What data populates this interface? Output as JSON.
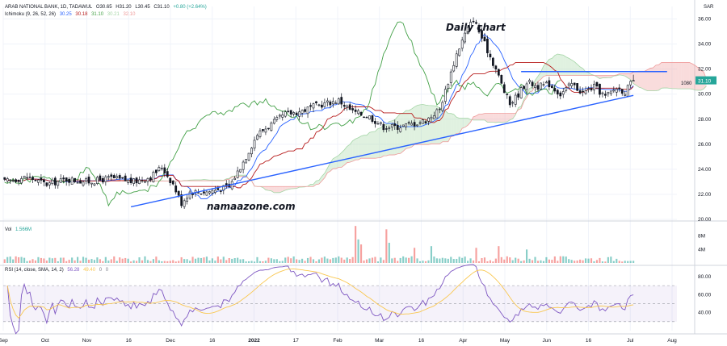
{
  "header": {
    "symbol_line": "ARAB NATIONAL BANK, 1D, TADAWUL",
    "ohlc": [
      "O30.65",
      "H31.20",
      "L30.45",
      "C31.10",
      "+0.80 (+2.64%)"
    ],
    "ichimoku_label": "Ichimoku (9, 26, 52, 26)",
    "ichimoku_values": [
      "30.25",
      "30.18",
      "31.10",
      "30.21",
      "32.10"
    ],
    "ichimoku_colors": [
      "#2962ff",
      "#b71c1c",
      "#43a047",
      "#a5d6a7",
      "#ef9a9a"
    ],
    "vol_label": "Vol",
    "vol_value": "1.566M",
    "rsi_label": "RSI (14, close, SMA, 14, 2)",
    "rsi_values": [
      "56.28",
      "49.40",
      "0",
      "0"
    ],
    "currency": "SAR"
  },
  "annotations": {
    "title": "Daily chart",
    "watermark": "namaazone.com",
    "price_tag": "1080"
  },
  "chart_data": [
    {
      "type": "candlestick",
      "panel": "price",
      "ylim": [
        20.0,
        37.0
      ],
      "y_ticks": [
        "36.00",
        "34.00",
        "32.00",
        "31.10",
        "30.00",
        "28.00",
        "26.00",
        "24.00",
        "22.00",
        "20.00"
      ],
      "x_ticks": [
        "Sep",
        "Oct",
        "Nov",
        "16",
        "Dec",
        "16",
        "2022",
        "17",
        "Feb",
        "Mar",
        "16",
        "Apr",
        "May",
        "Jun",
        "16",
        "Jul",
        "Aug"
      ],
      "last_close": 31.1,
      "trendlines": [
        {
          "name": "support",
          "from": [
            45,
            21.0
          ],
          "to": [
            224,
            29.9
          ]
        },
        {
          "name": "resistance",
          "from": [
            184,
            31.8
          ],
          "to": [
            236,
            31.8
          ]
        }
      ],
      "anchors": [
        [
          0,
          23.0
        ],
        [
          8,
          23.4
        ],
        [
          15,
          22.8
        ],
        [
          22,
          23.2
        ],
        [
          30,
          23.0
        ],
        [
          38,
          23.3
        ],
        [
          46,
          23.0
        ],
        [
          52,
          23.4
        ],
        [
          56,
          24.2
        ],
        [
          60,
          22.8
        ],
        [
          63,
          21.3
        ],
        [
          66,
          22.2
        ],
        [
          72,
          22.2
        ],
        [
          80,
          22.6
        ],
        [
          85,
          24.6
        ],
        [
          90,
          26.8
        ],
        [
          95,
          27.6
        ],
        [
          100,
          28.4
        ],
        [
          105,
          28.6
        ],
        [
          110,
          29.0
        ],
        [
          115,
          29.3
        ],
        [
          119,
          29.5
        ],
        [
          124,
          28.6
        ],
        [
          130,
          28.2
        ],
        [
          135,
          27.4
        ],
        [
          140,
          27.4
        ],
        [
          145,
          27.6
        ],
        [
          150,
          27.9
        ],
        [
          155,
          28.8
        ],
        [
          158,
          31.0
        ],
        [
          161,
          33.2
        ],
        [
          164,
          34.8
        ],
        [
          167,
          36.0
        ],
        [
          171,
          34.0
        ],
        [
          175,
          32.0
        ],
        [
          178,
          30.2
        ],
        [
          180,
          29.2
        ],
        [
          183,
          30.0
        ],
        [
          186,
          31.0
        ],
        [
          190,
          30.6
        ],
        [
          194,
          30.8
        ],
        [
          198,
          30.0
        ],
        [
          202,
          30.8
        ],
        [
          206,
          30.1
        ],
        [
          210,
          30.6
        ],
        [
          214,
          29.8
        ],
        [
          218,
          30.5
        ],
        [
          221,
          30.2
        ],
        [
          224,
          31.1
        ]
      ],
      "ichimoku": {
        "conversion_line": "Tenkan-sen",
        "base_line": "Kijun-sen",
        "lagging_span": "Chikou Span",
        "cloud": [
          "Senkou Span A",
          "Senkou Span B"
        ]
      },
      "legend": "top-left"
    },
    {
      "type": "bar",
      "panel": "volume",
      "ylim": [
        0,
        12
      ],
      "y_ticks": [
        "8M",
        "4M"
      ],
      "unit": "M",
      "spikes": [
        [
          125,
          11.0
        ],
        [
          126,
          7.0
        ],
        [
          127,
          5.5
        ],
        [
          136,
          10.0
        ],
        [
          137,
          6.0
        ],
        [
          146,
          4.5
        ],
        [
          152,
          5.0
        ],
        [
          168,
          4.5
        ],
        [
          176,
          5.0
        ],
        [
          186,
          4.0
        ]
      ]
    },
    {
      "type": "line",
      "panel": "rsi",
      "ylim": [
        20,
        88
      ],
      "y_ticks": [
        "80.00",
        "60.00",
        "40.00"
      ],
      "bands": [
        70,
        30
      ],
      "mid": 50,
      "series": [
        {
          "name": "RSI"
        },
        {
          "name": "SMA"
        }
      ]
    }
  ]
}
